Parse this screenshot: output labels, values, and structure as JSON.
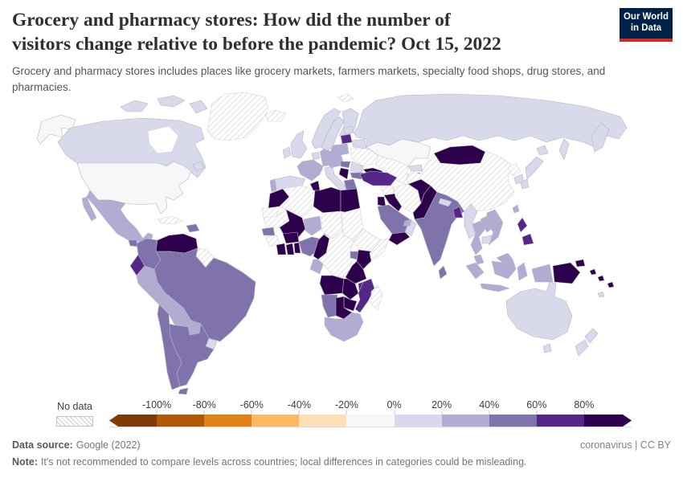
{
  "header": {
    "title_lines": [
      "Grocery and pharmacy stores: How did the number of",
      "visitors change relative to before the pandemic? Oct 15, 2022"
    ],
    "subtitle": "Grocery and pharmacy stores includes places like grocery markets, farmers markets, specialty food shops, drug stores, and pharmacies.",
    "logo": {
      "line1": "Our World",
      "line2": "in Data",
      "bg": "#002147",
      "stripe": "#d7281e"
    }
  },
  "legend": {
    "no_data_label": "No data",
    "tick_labels": [
      "-100%",
      "-80%",
      "-60%",
      "-40%",
      "-20%",
      "0%",
      "20%",
      "40%",
      "60%",
      "80%"
    ],
    "colors": [
      "#7f3b08",
      "#b35806",
      "#e08214",
      "#fdb863",
      "#fee0b6",
      "#f7f7f7",
      "#d8daeb",
      "#b2abd2",
      "#8073ac",
      "#542788",
      "#2d004b"
    ]
  },
  "footer": {
    "source_label": "Data source:",
    "source_value": "Google (2022)",
    "right_text": "coronavirus | CC BY",
    "note_label": "Note:",
    "note_value": "It's not recommended to compare levels across countries; local differences in categories could be misleading."
  },
  "chart_data": {
    "type": "heatmap",
    "subtype": "choropleth_world_map",
    "title": "Grocery and pharmacy stores: How did the number of visitors change relative to before the pandemic?",
    "date": "Oct 15, 2022",
    "unit": "% change in visitors vs pre-pandemic baseline",
    "legend_position": "bottom",
    "bins": [
      {
        "label": "< -100%",
        "color": "#7f3b08"
      },
      {
        "label": "-100% to -80%",
        "color": "#b35806"
      },
      {
        "label": "-80% to -60%",
        "color": "#e08214"
      },
      {
        "label": "-60% to -40%",
        "color": "#fdb863"
      },
      {
        "label": "-40% to -20%",
        "color": "#fee0b6"
      },
      {
        "label": "-20% to 0%",
        "color": "#f7f7f7"
      },
      {
        "label": "0% to 20%",
        "color": "#d8daeb"
      },
      {
        "label": "20% to 40%",
        "color": "#b2abd2"
      },
      {
        "label": "40% to 60%",
        "color": "#8073ac"
      },
      {
        "label": "60% to 80%",
        "color": "#542788"
      },
      {
        "label": "> 80%",
        "color": "#2d004b"
      }
    ],
    "countries": {
      "greenland": null,
      "canada": 6,
      "united-states": 5,
      "mexico": 7,
      "guatemala": 8,
      "honduras": 9,
      "nicaragua": 9,
      "costa-rica": 8,
      "panama": 8,
      "cuba": null,
      "hispaniola": 8,
      "venezuela": 10,
      "colombia": 8,
      "guyana-suriname": null,
      "ecuador": 9,
      "peru": 7,
      "brazil": 8,
      "bolivia": 7,
      "paraguay": 7,
      "uruguay": 6,
      "argentina": 8,
      "chile": 8,
      "iceland": null,
      "ireland": 6,
      "united-kingdom": 6,
      "norway": 6,
      "sweden": 6,
      "finland": 6,
      "denmark": 7,
      "netherlands-belgium": 6,
      "germany": 7,
      "france": 7,
      "spain": 6,
      "portugal": 7,
      "italy": 6,
      "switzerland": 7,
      "austria-czechia": 7,
      "poland": 7,
      "latvia-lithuania": 9,
      "estonia": 6,
      "belarus": 6,
      "ukraine": null,
      "romania": 6,
      "hungary": 8,
      "serbia": 10,
      "greece": 8,
      "bulgaria": 8,
      "russia": 6,
      "svalbard": null,
      "kazakhstan": 5,
      "turkmenistan-uzbekistan": null,
      "kyrgyzstan": 6,
      "tajikistan": 10,
      "azerbaijan-georgia": 10,
      "turkey": 9,
      "syria": null,
      "iraq": 10,
      "iran": null,
      "jordan": 10,
      "saudi-arabia": 8,
      "yemen": 10,
      "oman": 6,
      "united-arab-emirates": 7,
      "morocco": 10,
      "western-sahara": null,
      "algeria": null,
      "tunisia": 10,
      "libya": 10,
      "egypt": 10,
      "mauritania": null,
      "mali": 10,
      "senegal": 8,
      "guinea": null,
      "ivory-coast": 10,
      "ghana": 10,
      "benin-togo": 10,
      "burkina-faso": 10,
      "niger": 7,
      "chad": null,
      "sudan": null,
      "nigeria": 8,
      "cameroon": 10,
      "dr-congo": null,
      "ethiopia": null,
      "somalia": null,
      "uganda": 8,
      "kenya": 10,
      "tanzania": 10,
      "gabon": 7,
      "angola": 10,
      "zambia": 10,
      "malawi": 9,
      "mozambique": 9,
      "zimbabwe": 10,
      "namibia": 8,
      "botswana": 10,
      "south-africa": 7,
      "madagascar": null,
      "afghanistan": 10,
      "pakistan": 10,
      "india": 8,
      "nepal": 6,
      "bangladesh": 9,
      "sri-lanka": 8,
      "myanmar": 6,
      "thailand": 7,
      "laos": 7,
      "vietnam": 7,
      "cambodia": 6,
      "malaysia": 7,
      "indonesia": 7,
      "philippines": 9,
      "mongolia": 10,
      "china": null,
      "north-korea": null,
      "south-korea": 6,
      "japan": 6,
      "taiwan": 7,
      "papua-new-guinea": 10,
      "solomon-islands": 10,
      "fiji": 10,
      "vanuatu": 6,
      "australia": 6,
      "new-zealand": 6
    }
  }
}
